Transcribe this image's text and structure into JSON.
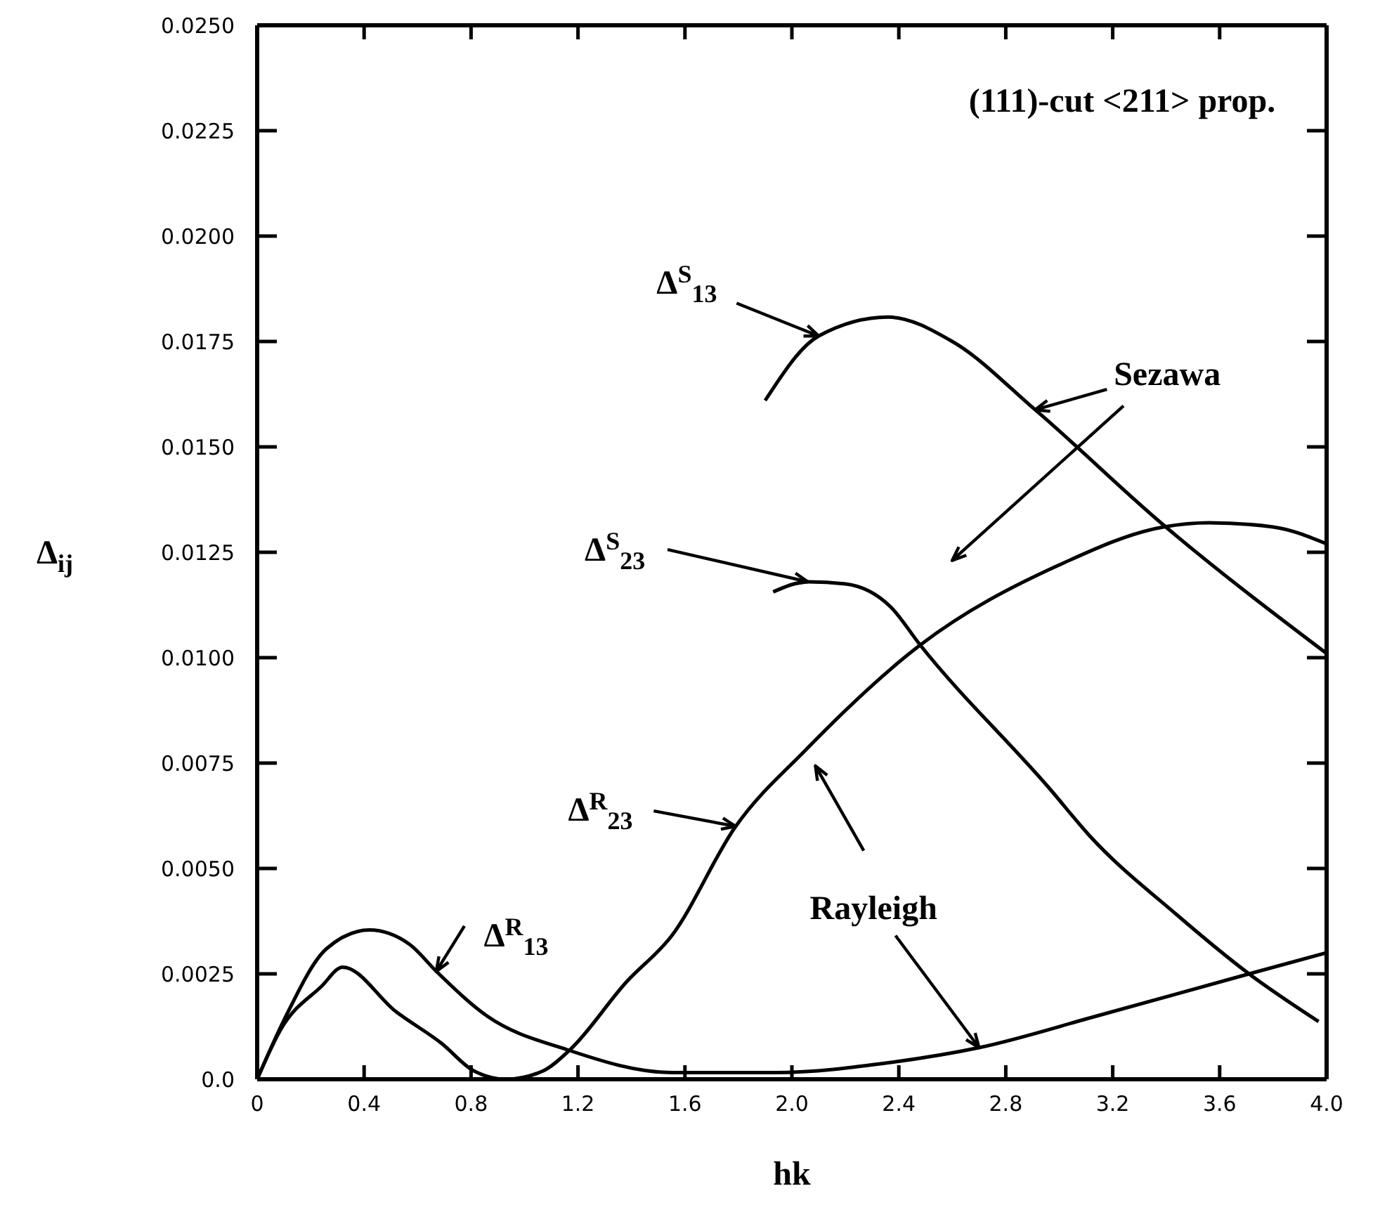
{
  "chart_data": {
    "type": "line",
    "xlabel": "hk",
    "ylabel": "Δ$_{ij}$",
    "xlim": [
      0,
      4
    ],
    "xticks": [
      {
        "value": 0,
        "label": "0"
      },
      0.4,
      0.8,
      1.2,
      1.6,
      {
        "value": 2,
        "label": "2.0"
      },
      2.4,
      2.8,
      3.2,
      3.6,
      {
        "value": 4,
        "label": "4.0"
      }
    ],
    "ylim": [
      0,
      0.025
    ],
    "yticks": [
      {
        "value": 0,
        "label": "0.0"
      },
      0.0025,
      {
        "value": 0.005,
        "label": "0.0050"
      },
      0.0075,
      {
        "value": 0.01,
        "label": "0.0100"
      },
      0.0125,
      {
        "value": 0.015,
        "label": "0.0150"
      },
      0.0175,
      {
        "value": 0.02,
        "label": "0.0200"
      },
      0.0225,
      {
        "value": 0.025,
        "label": "0.0250"
      }
    ],
    "marker": "none",
    "line_style": "solid",
    "grid": false,
    "series": [
      {
        "color": "#000000",
        "x": [
          0,
          0.1,
          0.26,
          0.42,
          0.57,
          0.67,
          0.86,
          1.16,
          1.55,
          1.94,
          2.37,
          2.7,
          3.14,
          3.71,
          4.0
        ],
        "values": [
          0,
          0.0014,
          0.0031,
          0.00354,
          0.0032,
          0.00256,
          0.0015,
          0.0007,
          0.00016,
          0.00016,
          0.0004,
          0.00075,
          0.0015,
          0.0025,
          0.003
        ]
      },
      {
        "color": "#000000",
        "x": [
          0,
          0.09,
          0.24,
          0.32,
          0.52,
          0.69,
          0.81,
          0.93,
          1.07,
          1.17,
          1.38,
          1.55,
          1.79,
          2.05,
          2.48,
          3.0,
          3.39,
          3.56,
          3.8,
          4.0
        ],
        "values": [
          0,
          0.0012,
          0.0022,
          0.00266,
          0.0016,
          0.00085,
          0.0002,
          0,
          0.0002,
          0.0007,
          0.0023,
          0.0034,
          0.006,
          0.0078,
          0.0103,
          0.0122,
          0.0131,
          0.0132,
          0.0131,
          0.0127
        ]
      },
      {
        "color": "#000000",
        "x": [
          1.9,
          2.1,
          2.36,
          2.6,
          2.91,
          3.38,
          4.0
        ],
        "values": [
          0.0161,
          0.01763,
          0.01808,
          0.0175,
          0.01588,
          0.0132,
          0.0101
        ]
      },
      {
        "color": "#000000",
        "x": [
          1.93,
          2.06,
          2.2,
          2.37,
          2.48,
          2.97,
          3.11,
          3.44,
          3.71,
          3.97
        ],
        "values": [
          0.01156,
          0.0118,
          0.01175,
          0.0112,
          0.0103,
          0.00685,
          0.0058,
          0.0039,
          0.0025,
          0.00137
        ]
      }
    ],
    "annotations": [
      "(111)-cut <211> prop.",
      {
        "text": "Δ$^{S}$$_{13}$",
        "x": 2.1,
        "y": 0.01763
      },
      {
        "text": "Sezawa",
        "x": 2.91,
        "y": 0.01588
      },
      {
        "text": "Δ$^{S}$$_{23}$",
        "x": 2.06,
        "y": 0.0118
      },
      {
        "text": "Δ$^{R}$$_{23}$",
        "x": 1.79,
        "y": 0.006
      },
      {
        "text": "Rayleigh",
        "x": 2.7,
        "y": 0.00075
      },
      {
        "text": "Δ$^{R}$$_{13}$",
        "x": 0.67,
        "y": 0.00256
      }
    ]
  }
}
